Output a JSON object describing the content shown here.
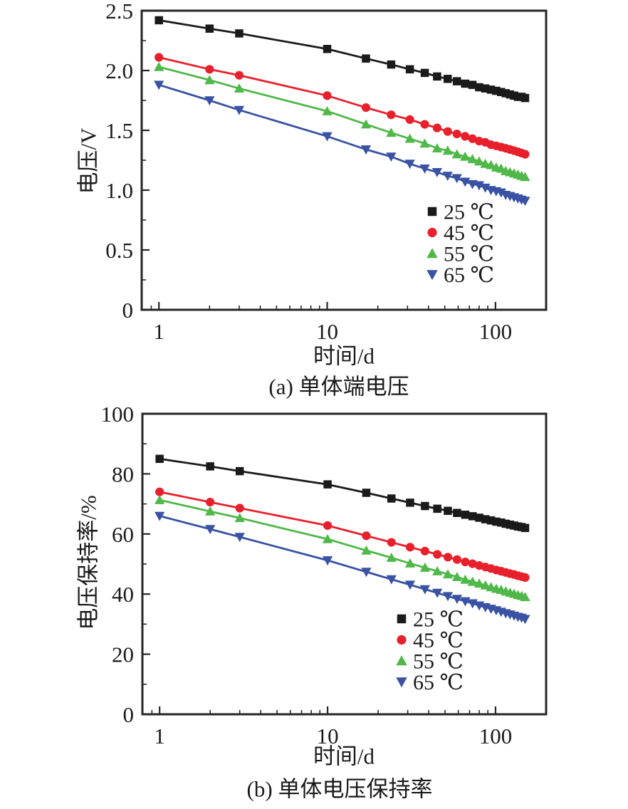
{
  "figure": {
    "accent_colors": {
      "black": "#1a1a1a",
      "red": "#e8202c",
      "green": "#4fb848",
      "blue": "#3952a3",
      "frame": "#262626"
    },
    "charts": [
      {
        "id": "a",
        "type": "line",
        "caption": "(a) 单体端电压",
        "xlabel": "时间/d",
        "ylabel": "电压/V",
        "xscale": "log",
        "grid": false,
        "legend_position": "inside-bottom-right",
        "xlim": [
          0.79,
          200
        ],
        "ylim": [
          0,
          2.5
        ],
        "xticks": {
          "values": [
            1,
            10,
            100
          ],
          "labels": [
            "1",
            "10",
            "100"
          ]
        },
        "xminor": [
          0.9,
          2,
          3,
          4,
          5,
          6,
          7,
          8,
          9,
          20,
          30,
          40,
          50,
          60,
          70,
          80,
          90
        ],
        "yticks": {
          "values": [
            0,
            0.5,
            1.0,
            1.5,
            2.0,
            2.5
          ],
          "labels": [
            "0",
            "0.5",
            "1.0",
            "1.5",
            "2.0",
            "2.5"
          ]
        },
        "yminor": [
          0.25,
          0.75,
          1.25,
          1.75,
          2.25
        ],
        "x": [
          1,
          2,
          3,
          10,
          17,
          24,
          31,
          38,
          45,
          52,
          59,
          66,
          73,
          80,
          87,
          94,
          101,
          108,
          115,
          122,
          129,
          136,
          143,
          150
        ],
        "series": [
          {
            "key": "25c",
            "name": "25 ℃",
            "color": "#1a1a1a",
            "marker": "square",
            "values": [
              2.42,
              2.35,
              2.31,
              2.18,
              2.1,
              2.05,
              2.01,
              1.98,
              1.95,
              1.93,
              1.91,
              1.89,
              1.88,
              1.86,
              1.85,
              1.84,
              1.83,
              1.82,
              1.81,
              1.8,
              1.79,
              1.78,
              1.78,
              1.77
            ]
          },
          {
            "key": "45c",
            "name": "45 ℃",
            "color": "#e8202c",
            "marker": "circle",
            "values": [
              2.11,
              2.01,
              1.96,
              1.79,
              1.69,
              1.63,
              1.59,
              1.55,
              1.52,
              1.49,
              1.47,
              1.45,
              1.43,
              1.41,
              1.4,
              1.38,
              1.37,
              1.36,
              1.35,
              1.34,
              1.33,
              1.32,
              1.31,
              1.3
            ]
          },
          {
            "key": "55c",
            "name": "55 ℃",
            "color": "#4fb848",
            "marker": "triangle-up",
            "values": [
              2.03,
              1.92,
              1.85,
              1.66,
              1.55,
              1.48,
              1.43,
              1.39,
              1.35,
              1.33,
              1.3,
              1.28,
              1.26,
              1.24,
              1.22,
              1.21,
              1.19,
              1.18,
              1.16,
              1.15,
              1.14,
              1.13,
              1.12,
              1.11
            ]
          },
          {
            "key": "65c",
            "name": "65 ℃",
            "color": "#3952a3",
            "marker": "triangle-down",
            "values": [
              1.88,
              1.75,
              1.67,
              1.45,
              1.34,
              1.28,
              1.22,
              1.18,
              1.15,
              1.12,
              1.1,
              1.07,
              1.05,
              1.04,
              1.02,
              1.0,
              0.99,
              0.98,
              0.96,
              0.95,
              0.94,
              0.93,
              0.92,
              0.91
            ]
          }
        ]
      },
      {
        "id": "b",
        "type": "line",
        "caption": "(b) 单体电压保持率",
        "xlabel": "时间/d",
        "ylabel": "电压保持率/%",
        "xscale": "log",
        "grid": false,
        "legend_position": "inside-bottom-right",
        "xlim": [
          0.79,
          200
        ],
        "ylim": [
          0,
          100
        ],
        "xticks": {
          "values": [
            1,
            10,
            100
          ],
          "labels": [
            "1",
            "10",
            "100"
          ]
        },
        "xminor": [
          0.9,
          2,
          3,
          4,
          5,
          6,
          7,
          8,
          9,
          20,
          30,
          40,
          50,
          60,
          70,
          80,
          90
        ],
        "yticks": {
          "values": [
            0,
            20,
            40,
            60,
            80,
            100
          ],
          "labels": [
            "0",
            "20",
            "40",
            "60",
            "80",
            "100"
          ]
        },
        "yminor": [
          10,
          30,
          50,
          70,
          90
        ],
        "x": [
          1,
          2,
          3,
          10,
          17,
          24,
          31,
          38,
          45,
          52,
          59,
          66,
          73,
          80,
          87,
          94,
          101,
          108,
          115,
          122,
          129,
          136,
          143,
          150
        ],
        "series": [
          {
            "key": "25c",
            "name": "25 ℃",
            "color": "#1a1a1a",
            "marker": "square",
            "values": [
              85.0,
              82.5,
              80.9,
              76.5,
              73.7,
              71.8,
              70.4,
              69.3,
              68.4,
              67.7,
              67.0,
              66.4,
              65.9,
              65.4,
              64.9,
              64.5,
              64.1,
              63.8,
              63.4,
              63.1,
              62.8,
              62.5,
              62.3,
              62.0
            ]
          },
          {
            "key": "45c",
            "name": "45 ℃",
            "color": "#e8202c",
            "marker": "circle",
            "values": [
              74.0,
              70.6,
              68.6,
              62.8,
              59.4,
              57.2,
              55.6,
              54.3,
              53.2,
              52.3,
              51.5,
              50.7,
              50.1,
              49.5,
              49.0,
              48.5,
              48.0,
              47.6,
              47.2,
              46.8,
              46.5,
              46.1,
              45.8,
              45.5
            ]
          },
          {
            "key": "55c",
            "name": "55 ℃",
            "color": "#4fb848",
            "marker": "triangle-up",
            "values": [
              71.3,
              67.5,
              65.3,
              58.3,
              54.5,
              52.1,
              50.2,
              48.8,
              47.6,
              46.6,
              45.7,
              44.8,
              44.1,
              43.5,
              42.9,
              42.3,
              41.8,
              41.4,
              40.9,
              40.5,
              40.1,
              39.7,
              39.4,
              39.0
            ]
          },
          {
            "key": "65c",
            "name": "65 ℃",
            "color": "#3952a3",
            "marker": "triangle-down",
            "values": [
              66.0,
              61.6,
              59.0,
              51.2,
              47.4,
              44.9,
              43.1,
              41.6,
              40.4,
              39.3,
              38.4,
              37.6,
              36.9,
              36.2,
              35.6,
              35.1,
              34.6,
              34.1,
              33.6,
              33.2,
              32.8,
              32.4,
              32.1,
              31.7
            ]
          }
        ]
      }
    ]
  }
}
